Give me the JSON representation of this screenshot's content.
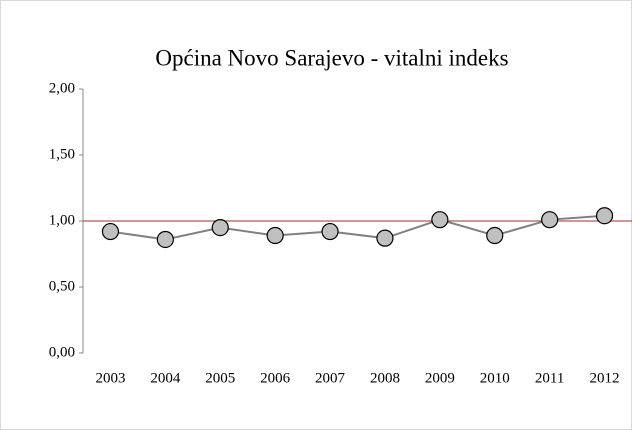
{
  "chart_data": {
    "type": "line",
    "title": "Općina Novo Sarajevo - vitalni indeks",
    "categories": [
      "2003",
      "2004",
      "2005",
      "2006",
      "2007",
      "2008",
      "2009",
      "2010",
      "2011",
      "2012"
    ],
    "series": [
      {
        "color": "#808080",
        "marker_color": "#c0c0c0",
        "values": [
          0.92,
          0.86,
          0.95,
          0.89,
          0.92,
          0.87,
          1.01,
          0.89,
          1.01,
          1.04
        ]
      }
    ],
    "ylim": [
      0,
      2
    ],
    "yticks": [
      {
        "value": 0,
        "label": "0,00"
      },
      {
        "value": 0.5,
        "label": "0,50"
      },
      {
        "value": 1,
        "label": "1,00"
      },
      {
        "value": 1.5,
        "label": "1,50"
      },
      {
        "value": 2,
        "label": "2,00"
      }
    ],
    "reference_line": {
      "value": 1,
      "color": "#a52a2a"
    }
  }
}
